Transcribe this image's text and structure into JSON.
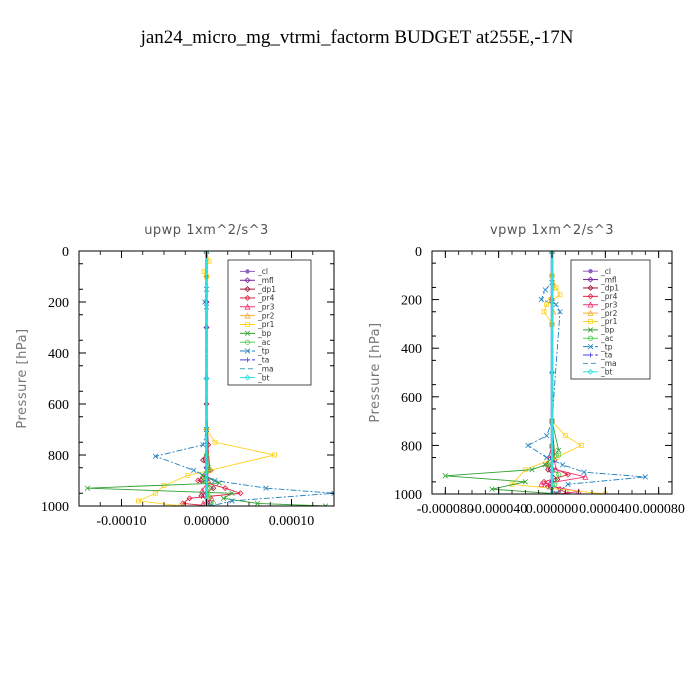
{
  "figure_title": "jan24_micro_mg_vtrmi_factorm  BUDGET at255E,-17N",
  "chart_data": [
    {
      "type": "line",
      "title": "upwp   1xm^2/s^3",
      "ylabel": "Pressure [hPa]",
      "xlabel": "",
      "xlim": [
        -0.00015,
        0.00015
      ],
      "ylim": [
        1000,
        0
      ],
      "xticks": [
        -0.0001,
        0.0,
        0.0001
      ],
      "xtick_labels": [
        "-0.00010",
        "0.00000",
        "0.00010"
      ],
      "yticks": [
        0,
        200,
        400,
        600,
        800,
        1000
      ],
      "ytick_labels": [
        "0",
        "200",
        "400",
        "600",
        "800",
        "1000"
      ],
      "legend_position": "top-right",
      "series": [
        {
          "name": "_cl",
          "color": "#9060c0",
          "marker": "dot",
          "dash": "solid",
          "y": [
            0,
            100,
            200,
            300,
            500,
            700,
            850,
            950,
            1000
          ],
          "values": [
            0,
            0,
            0,
            0,
            0,
            0,
            0,
            0,
            0
          ]
        },
        {
          "name": "_mfl",
          "color": "#7a1fa0",
          "marker": "diamond",
          "dash": "solid",
          "y": [
            0,
            100,
            200,
            300,
            500,
            700,
            850,
            950,
            1000
          ],
          "values": [
            0,
            0,
            0,
            0,
            0,
            0,
            0,
            0,
            0
          ]
        },
        {
          "name": "_dp1",
          "color": "#a01030",
          "marker": "diamond",
          "dash": "solid",
          "y": [
            0,
            600,
            760,
            820,
            860,
            900,
            930,
            960,
            985,
            1000
          ],
          "values": [
            0,
            0,
            2e-06,
            -4e-06,
            5e-06,
            -6e-06,
            8e-06,
            -6e-06,
            4e-06,
            2e-06
          ]
        },
        {
          "name": "_pr4",
          "color": "#e02040",
          "marker": "diamond",
          "dash": "solid",
          "y": [
            0,
            700,
            860,
            900,
            930,
            950,
            970,
            990,
            1000
          ],
          "values": [
            0,
            0,
            4e-06,
            -1e-05,
            2.2e-05,
            4e-05,
            -2e-05,
            -2.8e-05,
            5e-06
          ]
        },
        {
          "name": "_pr3",
          "color": "#f03070",
          "marker": "triangle",
          "dash": "solid",
          "y": [
            0,
            800,
            900,
            940,
            970,
            990,
            1000
          ],
          "values": [
            0,
            0,
            2e-06,
            -5e-06,
            6e-06,
            -4e-06,
            0
          ]
        },
        {
          "name": "_pr2",
          "color": "#f0b030",
          "marker": "triangle",
          "dash": "solid",
          "y": [
            0,
            900,
            960,
            1000
          ],
          "values": [
            0,
            0,
            2e-06,
            0
          ]
        },
        {
          "name": "_pr1",
          "color": "#ffd21e",
          "marker": "square",
          "dash": "solid",
          "y": [
            0,
            40,
            80,
            100,
            700,
            750,
            800,
            860,
            880,
            920,
            950,
            980,
            1000
          ],
          "values": [
            0,
            3e-06,
            -3e-06,
            0,
            0,
            1e-05,
            8e-05,
            4e-06,
            -2.2e-05,
            -5e-05,
            -6e-05,
            -8e-05,
            -3e-05
          ]
        },
        {
          "name": "_bp",
          "color": "#30a030",
          "marker": "x",
          "dash": "solid",
          "y": [
            0,
            700,
            850,
            880,
            910,
            930,
            950,
            970,
            990,
            1000
          ],
          "values": [
            0,
            0,
            2e-06,
            -5e-06,
            1.5e-05,
            -0.00014,
            3e-05,
            2e-05,
            6e-05,
            0.00014
          ]
        },
        {
          "name": "_ac",
          "color": "#50d050",
          "marker": "circle",
          "dash": "solid",
          "y": [
            0,
            800,
            860,
            900,
            930,
            960,
            990,
            1000
          ],
          "values": [
            0,
            0,
            2e-06,
            -3e-06,
            4e-06,
            2e-06,
            8e-06,
            4e-06
          ]
        },
        {
          "name": "_tp",
          "color": "#2080c0",
          "marker": "x",
          "dash": "dashdot",
          "y": [
            0,
            150,
            200,
            220,
            700,
            760,
            805,
            860,
            900,
            930,
            950,
            980,
            1000
          ],
          "values": [
            0,
            0,
            -2e-06,
            0,
            0,
            -4e-06,
            -6e-05,
            -1.5e-05,
            1e-05,
            7e-05,
            0.00015,
            3e-05,
            5e-06
          ]
        },
        {
          "name": "_ta",
          "color": "#4040e0",
          "marker": "plus",
          "dash": "dashdot",
          "y": [
            0,
            500,
            900,
            1000
          ],
          "values": [
            0,
            0,
            0,
            0
          ]
        },
        {
          "name": "_ma",
          "color": "#40a0c0",
          "marker": "none",
          "dash": "dash",
          "y": [
            0,
            500,
            900,
            1000
          ],
          "values": [
            0,
            0,
            0,
            0
          ]
        },
        {
          "name": "_bt",
          "color": "#30e0e0",
          "marker": "diamond",
          "dash": "solid",
          "y": [
            0,
            500,
            1000
          ],
          "values": [
            0,
            0,
            0
          ]
        }
      ]
    },
    {
      "type": "line",
      "title": "vpwp   1xm^2/s^3",
      "ylabel": "Pressure [hPa]",
      "xlabel": "",
      "xlim": [
        -9e-05,
        9e-05
      ],
      "ylim": [
        1000,
        0
      ],
      "xticks": [
        -8e-05,
        -4e-05,
        0.0,
        4e-05,
        8e-05
      ],
      "xtick_labels": [
        "-0.000080",
        "-0.000040",
        "0.000000",
        "0.000040",
        "0.000080"
      ],
      "yticks": [
        0,
        200,
        400,
        600,
        800,
        1000
      ],
      "ytick_labels": [
        "0",
        "200",
        "400",
        "600",
        "800",
        "1000"
      ],
      "legend_position": "top-right",
      "series": [
        {
          "name": "_cl",
          "color": "#9060c0",
          "marker": "dot",
          "dash": "solid",
          "y": [
            0,
            100,
            200,
            300,
            500,
            700,
            850,
            950,
            1000
          ],
          "values": [
            0,
            0,
            0,
            0,
            0,
            0,
            0,
            0,
            0
          ]
        },
        {
          "name": "_mfl",
          "color": "#7a1fa0",
          "marker": "diamond",
          "dash": "solid",
          "y": [
            0,
            100,
            200,
            300,
            500,
            700,
            850,
            950,
            1000
          ],
          "values": [
            0,
            0,
            0,
            0,
            0,
            0,
            0,
            0,
            0
          ]
        },
        {
          "name": "_dp1",
          "color": "#a01030",
          "marker": "diamond",
          "dash": "solid",
          "y": [
            0,
            700,
            860,
            900,
            940,
            970,
            1000
          ],
          "values": [
            0,
            0,
            2e-06,
            -3e-06,
            4e-06,
            -3e-06,
            2e-06
          ]
        },
        {
          "name": "_pr4",
          "color": "#e02040",
          "marker": "diamond",
          "dash": "solid",
          "y": [
            0,
            800,
            880,
            920,
            950,
            980,
            1000
          ],
          "values": [
            0,
            0,
            -4e-06,
            1.2e-05,
            -6e-06,
            6e-06,
            1.2e-05
          ]
        },
        {
          "name": "_pr3",
          "color": "#f03070",
          "marker": "triangle",
          "dash": "solid",
          "y": [
            0,
            800,
            900,
            930,
            960,
            990,
            1000
          ],
          "values": [
            0,
            0,
            3e-06,
            2.5e-05,
            -8e-06,
            2e-05,
            5e-06
          ]
        },
        {
          "name": "_pr2",
          "color": "#f0b030",
          "marker": "triangle",
          "dash": "solid",
          "y": [
            0,
            100,
            150,
            200,
            250,
            300,
            1000
          ],
          "values": [
            0,
            0,
            2e-06,
            -2e-06,
            1e-06,
            0,
            0
          ]
        },
        {
          "name": "_pr1",
          "color": "#ffd21e",
          "marker": "square",
          "dash": "solid",
          "y": [
            0,
            100,
            150,
            180,
            220,
            250,
            300,
            700,
            760,
            800,
            850,
            900,
            960,
            1000
          ],
          "values": [
            0,
            0,
            3e-06,
            6e-06,
            -4e-06,
            -6e-06,
            0,
            0,
            1e-05,
            2.2e-05,
            3e-06,
            -2e-05,
            -3e-05,
            4e-05
          ]
        },
        {
          "name": "_bp",
          "color": "#30a030",
          "marker": "x",
          "dash": "solid",
          "y": [
            0,
            700,
            820,
            880,
            900,
            925,
            950,
            980,
            1000
          ],
          "values": [
            0,
            0,
            5e-06,
            -5e-06,
            -1.5e-05,
            -8e-05,
            -2e-05,
            -4.5e-05,
            5e-06
          ]
        },
        {
          "name": "_ac",
          "color": "#50d050",
          "marker": "circle",
          "dash": "solid",
          "y": [
            0,
            800,
            840,
            880,
            920,
            960,
            1000
          ],
          "values": [
            0,
            0,
            5e-06,
            -3e-06,
            5e-06,
            2e-06,
            0
          ]
        },
        {
          "name": "_tp",
          "color": "#2080c0",
          "marker": "x",
          "dash": "dashdot",
          "y": [
            0,
            130,
            160,
            200,
            220,
            250,
            700,
            760,
            800,
            850,
            880,
            910,
            930,
            960,
            1000
          ],
          "values": [
            0,
            0,
            -5e-06,
            -8e-06,
            3e-06,
            6e-06,
            0,
            -4e-06,
            -1.8e-05,
            -4e-06,
            8e-06,
            2.4e-05,
            7e-05,
            1.2e-05,
            2e-06
          ]
        },
        {
          "name": "_ta",
          "color": "#4040e0",
          "marker": "plus",
          "dash": "dashdot",
          "y": [
            0,
            500,
            900,
            1000
          ],
          "values": [
            0,
            0,
            0,
            0
          ]
        },
        {
          "name": "_ma",
          "color": "#40a0c0",
          "marker": "none",
          "dash": "dash",
          "y": [
            0,
            500,
            900,
            1000
          ],
          "values": [
            0,
            0,
            0,
            0
          ]
        },
        {
          "name": "_bt",
          "color": "#30e0e0",
          "marker": "diamond",
          "dash": "solid",
          "y": [
            0,
            500,
            1000
          ],
          "values": [
            0,
            0,
            0
          ]
        }
      ]
    }
  ]
}
